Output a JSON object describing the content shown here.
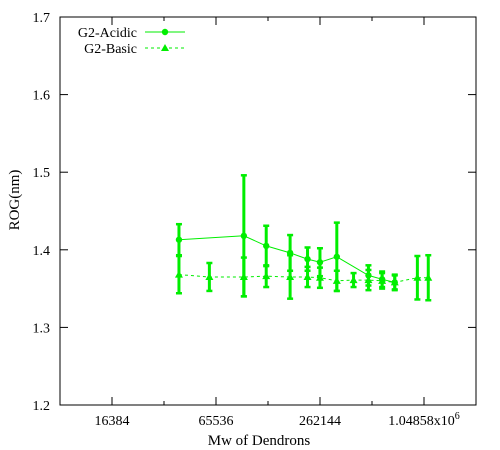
{
  "chart_data": {
    "type": "line",
    "title": "",
    "xlabel": "Mw of Dendrons",
    "ylabel": "ROG(nm)",
    "x_scale": "log2",
    "xlim": [
      8192,
      2097152
    ],
    "ylim": [
      1.2,
      1.7
    ],
    "x_ticks": [
      {
        "value": 16384,
        "label": "16384"
      },
      {
        "value": 65536,
        "label": "65536"
      },
      {
        "value": 262144,
        "label": "262144"
      },
      {
        "value": 1048576,
        "label": "1.04858x10",
        "sup": "6"
      }
    ],
    "y_ticks": [
      {
        "value": 1.2,
        "label": "1.2"
      },
      {
        "value": 1.3,
        "label": "1.3"
      },
      {
        "value": 1.4,
        "label": "1.4"
      },
      {
        "value": 1.5,
        "label": "1.5"
      },
      {
        "value": 1.6,
        "label": "1.6"
      },
      {
        "value": 1.7,
        "label": "1.7"
      }
    ],
    "grid": false,
    "legend_position": "top-left",
    "series": [
      {
        "name": "G2-Acidic",
        "color": "#00ee00",
        "line_style": "solid",
        "marker": "circle",
        "points": [
          {
            "x": 40000,
            "y": 1.413,
            "err": 0.02
          },
          {
            "x": 95000,
            "y": 1.418,
            "err": 0.078
          },
          {
            "x": 128000,
            "y": 1.405,
            "err": 0.026
          },
          {
            "x": 176000,
            "y": 1.396,
            "err": 0.023
          },
          {
            "x": 222000,
            "y": 1.388,
            "err": 0.015
          },
          {
            "x": 262000,
            "y": 1.384,
            "err": 0.018
          },
          {
            "x": 328000,
            "y": 1.391,
            "err": 0.044
          },
          {
            "x": 500000,
            "y": 1.367,
            "err": 0.013
          },
          {
            "x": 600000,
            "y": 1.362,
            "err": 0.01
          },
          {
            "x": 710000,
            "y": 1.358,
            "err": 0.01
          }
        ]
      },
      {
        "name": "G2-Basic",
        "color": "#00ee00",
        "line_style": "dashed",
        "marker": "triangle",
        "points": [
          {
            "x": 40000,
            "y": 1.368,
            "err": 0.024
          },
          {
            "x": 60000,
            "y": 1.365,
            "err": 0.018
          },
          {
            "x": 95000,
            "y": 1.365,
            "err": 0.025
          },
          {
            "x": 128000,
            "y": 1.366,
            "err": 0.014
          },
          {
            "x": 176000,
            "y": 1.365,
            "err": 0.028
          },
          {
            "x": 222000,
            "y": 1.365,
            "err": 0.013
          },
          {
            "x": 262000,
            "y": 1.364,
            "err": 0.013
          },
          {
            "x": 328000,
            "y": 1.36,
            "err": 0.013
          },
          {
            "x": 410000,
            "y": 1.361,
            "err": 0.009
          },
          {
            "x": 500000,
            "y": 1.361,
            "err": 0.013
          },
          {
            "x": 600000,
            "y": 1.36,
            "err": 0.01
          },
          {
            "x": 710000,
            "y": 1.358,
            "err": 0.009
          },
          {
            "x": 960000,
            "y": 1.364,
            "err": 0.028
          },
          {
            "x": 1110000,
            "y": 1.364,
            "err": 0.029
          }
        ]
      }
    ]
  }
}
